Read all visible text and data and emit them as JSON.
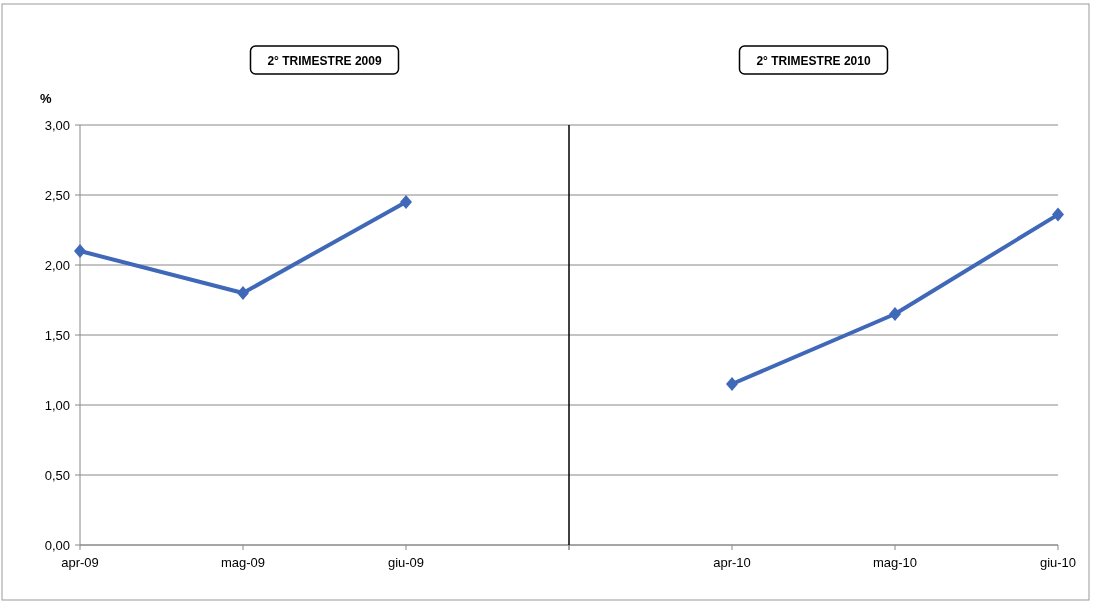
{
  "chart_data": [
    {
      "type": "line",
      "title": "2° TRIMESTRE 2009",
      "ylabel": "%",
      "categories": [
        "apr-09",
        "mag-09",
        "giu-09",
        null
      ],
      "series": [
        {
          "color": "#4068b8",
          "values": [
            2.1,
            1.8,
            2.45,
            null
          ]
        }
      ],
      "ylim": [
        0,
        3
      ],
      "yticks": [
        {
          "value": 0,
          "label": "0,00"
        },
        {
          "value": 0.5,
          "label": "0,50"
        },
        {
          "value": 1,
          "label": "1,00"
        },
        {
          "value": 1.5,
          "label": "1,50"
        },
        {
          "value": 2,
          "label": "2,00"
        },
        {
          "value": 2.5,
          "label": "2,50"
        },
        {
          "value": 3,
          "label": "3,00"
        }
      ],
      "grid": "y",
      "marker": "diamond",
      "line_style": "solid"
    },
    {
      "type": "line",
      "title": "2° TRIMESTRE 2010",
      "categories": [
        null,
        "apr-10",
        "mag-10",
        "giu-10"
      ],
      "series": [
        {
          "color": "#4068b8",
          "values": [
            null,
            1.15,
            1.65,
            2.36
          ]
        }
      ],
      "ylim": [
        0,
        3
      ],
      "yticks": [
        0,
        0.5,
        1,
        1.5,
        2,
        2.5,
        3
      ],
      "tick_labels": "x",
      "grid": "y",
      "marker": "diamond",
      "line_style": "solid"
    }
  ]
}
